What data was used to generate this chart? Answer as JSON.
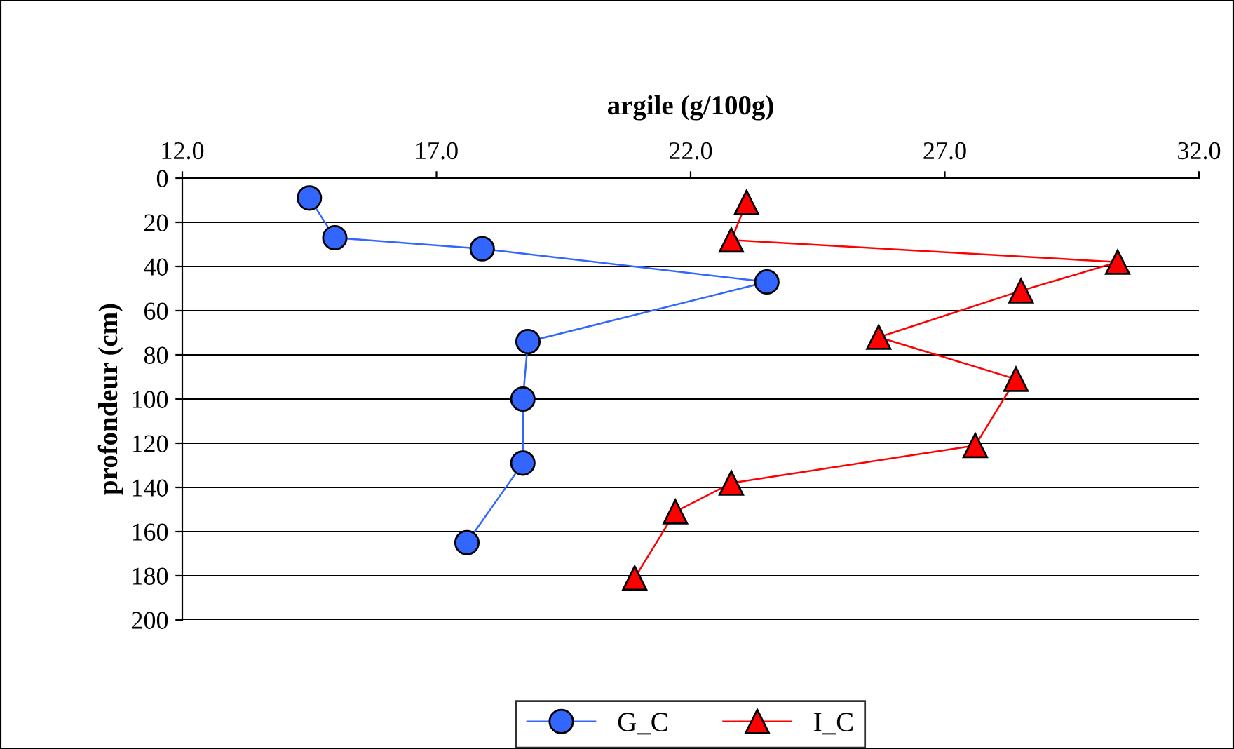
{
  "chart_data": {
    "type": "line",
    "xlabel": "argile (g/100g)",
    "ylabel": "profondeur (cm)",
    "xlim": [
      12,
      32
    ],
    "xticks": [
      {
        "value": 12,
        "label": "12.0"
      },
      {
        "value": 17,
        "label": "17.0"
      },
      {
        "value": 22,
        "label": "22.0"
      },
      {
        "value": 27,
        "label": "27.0"
      },
      {
        "value": 32,
        "label": "32.0"
      }
    ],
    "ylim": [
      200,
      0
    ],
    "yticks": [
      0,
      20,
      40,
      60,
      80,
      100,
      120,
      140,
      160,
      180,
      200
    ],
    "grid": "y",
    "legend": "bottom",
    "series": [
      {
        "name": "G_C",
        "color": "#3366ff",
        "marker": "circle",
        "x": [
          14.5,
          15.0,
          17.9,
          23.5,
          18.8,
          18.7,
          18.7,
          17.6
        ],
        "values": [
          9,
          27,
          32,
          47,
          74,
          100,
          129,
          165
        ]
      },
      {
        "name": "I_C",
        "color": "#ff0000",
        "marker": "triangle",
        "x": [
          23.1,
          22.8,
          30.4,
          28.5,
          25.7,
          28.4,
          27.6,
          22.8,
          21.7,
          20.9
        ],
        "values": [
          11,
          28,
          38,
          51,
          72,
          91,
          121,
          138,
          151,
          181
        ]
      }
    ]
  }
}
